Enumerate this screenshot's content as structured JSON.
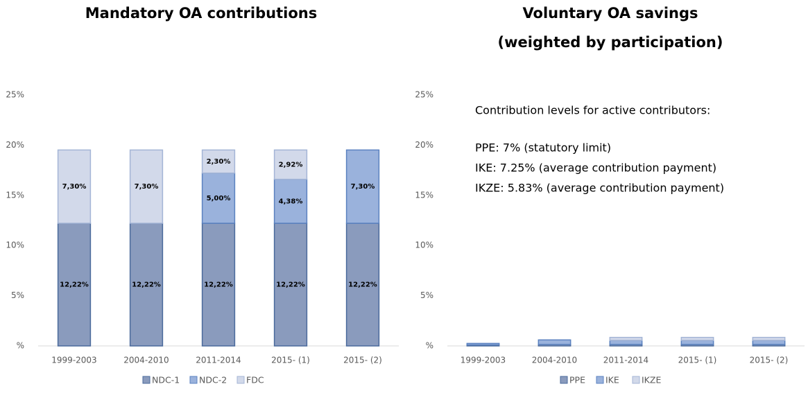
{
  "chart_data": [
    {
      "type": "stacked-bar",
      "title": [
        "Mandatory OA contributions"
      ],
      "categories": [
        "1999-2003",
        "2004-2010",
        "2011-2014",
        "2015- (1)",
        "2015- (2)"
      ],
      "series": [
        {
          "name": "NDC-1",
          "color": "#8a9bbd",
          "stroke": "#4a6a9c",
          "values": [
            12.22,
            12.22,
            12.22,
            12.22,
            12.22
          ],
          "value_labels": [
            "12,22%",
            "12,22%",
            "12,22%",
            "12,22%",
            "12,22%"
          ]
        },
        {
          "name": "NDC-2",
          "color": "#9ab2dc",
          "stroke": "#5b82c0",
          "values": [
            null,
            null,
            5.0,
            4.38,
            7.3
          ],
          "value_labels": [
            null,
            null,
            "5,00%",
            "4,38%",
            "7,30%"
          ]
        },
        {
          "name": "FDC",
          "color": "#d2d9ea",
          "stroke": "#a4b5d6",
          "values": [
            7.3,
            7.3,
            2.3,
            2.92,
            null
          ],
          "value_labels": [
            "7,30%",
            "7,30%",
            "2,30%",
            "2,92%",
            null
          ]
        }
      ],
      "ylim": [
        0,
        25
      ],
      "yticks": [
        {
          "value": 0,
          "label": "%"
        },
        {
          "value": 5,
          "label": "5%"
        },
        {
          "value": 10,
          "label": "10%"
        },
        {
          "value": 15,
          "label": "15%"
        },
        {
          "value": 20,
          "label": "20%"
        },
        {
          "value": 25,
          "label": "25%"
        }
      ],
      "legend": "bottom"
    },
    {
      "type": "stacked-bar",
      "title": [
        "Voluntary OA savings",
        "(weighted by participation)"
      ],
      "categories": [
        "1999-2003",
        "2004-2010",
        "2011-2014",
        "2015- (1)",
        "2015- (2)"
      ],
      "series": [
        {
          "name": "PPE",
          "color": "#8a9bbd",
          "stroke": "#4a6a9c",
          "values": [
            0.1,
            0.15,
            0.15,
            0.15,
            0.15
          ]
        },
        {
          "name": "IKE",
          "color": "#9ab2dc",
          "stroke": "#5b82c0",
          "values": [
            0.15,
            0.45,
            0.4,
            0.4,
            0.4
          ]
        },
        {
          "name": "IKZE",
          "color": "#d2d9ea",
          "stroke": "#a4b5d6",
          "values": [
            null,
            null,
            0.3,
            0.3,
            0.3
          ]
        }
      ],
      "ylim": [
        0,
        25
      ],
      "yticks": [
        {
          "value": 0,
          "label": "%"
        },
        {
          "value": 5,
          "label": "5%"
        },
        {
          "value": 10,
          "label": "10%"
        },
        {
          "value": 15,
          "label": "15%"
        },
        {
          "value": 20,
          "label": "20%"
        },
        {
          "value": 25,
          "label": "25%"
        }
      ],
      "legend": "bottom",
      "annotations": [
        "Contribution levels for active contributors:",
        "PPE: 7% (statutory limit)",
        "IKE: 7.25% (average contribution payment)",
        "IKZE: 5.83% (average contribution payment)"
      ]
    }
  ]
}
